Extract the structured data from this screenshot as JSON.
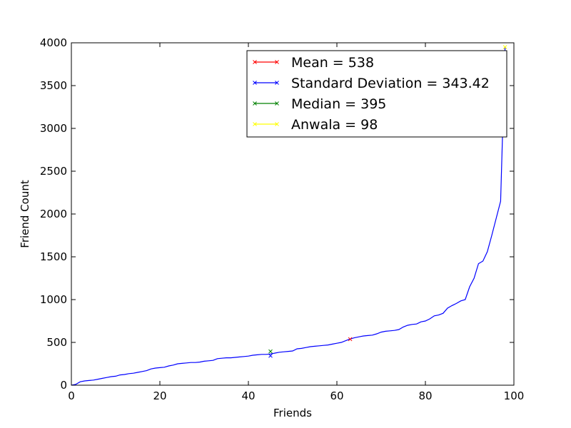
{
  "chart_data": {
    "type": "line",
    "xlabel": "Friends",
    "ylabel": "Friend Count",
    "xlim": [
      0,
      100
    ],
    "ylim": [
      0,
      4000
    ],
    "x_ticks": [
      "0",
      "20",
      "40",
      "60",
      "80",
      "100"
    ],
    "y_ticks": [
      "0",
      "500",
      "1000",
      "1500",
      "2000",
      "2500",
      "3000",
      "3500",
      "4000"
    ],
    "grid": false,
    "legend_position": "top-right",
    "series": [
      {
        "name": "Friend Count",
        "color": "#0000ff",
        "x": [
          0,
          1,
          2,
          3,
          4,
          5,
          6,
          7,
          8,
          9,
          10,
          11,
          12,
          13,
          14,
          15,
          16,
          17,
          18,
          19,
          20,
          21,
          22,
          23,
          24,
          25,
          26,
          27,
          28,
          29,
          30,
          31,
          32,
          33,
          34,
          35,
          36,
          37,
          38,
          39,
          40,
          41,
          42,
          43,
          44,
          45,
          46,
          47,
          48,
          49,
          50,
          51,
          52,
          53,
          54,
          55,
          56,
          57,
          58,
          59,
          60,
          61,
          62,
          63,
          64,
          65,
          66,
          67,
          68,
          69,
          70,
          71,
          72,
          73,
          74,
          75,
          76,
          77,
          78,
          79,
          80,
          81,
          82,
          83,
          84,
          85,
          86,
          87,
          88,
          89,
          90,
          91,
          92,
          93,
          94,
          95,
          96,
          97,
          98
        ],
        "y": [
          0,
          10,
          40,
          50,
          55,
          60,
          70,
          80,
          90,
          100,
          105,
          120,
          125,
          135,
          140,
          150,
          160,
          170,
          190,
          200,
          205,
          210,
          225,
          235,
          250,
          255,
          260,
          265,
          265,
          270,
          280,
          285,
          290,
          310,
          315,
          320,
          320,
          325,
          330,
          335,
          340,
          350,
          355,
          360,
          360,
          365,
          375,
          385,
          390,
          395,
          400,
          425,
          430,
          440,
          450,
          455,
          460,
          465,
          470,
          480,
          490,
          500,
          520,
          540,
          555,
          565,
          575,
          580,
          585,
          600,
          620,
          630,
          635,
          640,
          650,
          680,
          700,
          710,
          715,
          740,
          750,
          775,
          810,
          820,
          840,
          900,
          930,
          955,
          985,
          1000,
          1150,
          1250,
          1420,
          1450,
          1560,
          1750,
          1950,
          2150,
          3950
        ]
      }
    ],
    "markers": [
      {
        "name": "Mean",
        "x": 63,
        "y": 538,
        "color": "#ff0000"
      },
      {
        "name": "Standard Deviation",
        "x": 45,
        "y": 343.42,
        "color": "#0000ff"
      },
      {
        "name": "Median",
        "x": 45,
        "y": 395,
        "color": "#008000"
      },
      {
        "name": "Anwala",
        "x": 98,
        "y": 3950,
        "color": "#ffff00"
      }
    ],
    "legend": [
      {
        "label": "Mean = 538",
        "color": "#ff0000"
      },
      {
        "label": "Standard Deviation = 343.42",
        "color": "#0000ff"
      },
      {
        "label": "Median = 395",
        "color": "#008000"
      },
      {
        "label": "Anwala = 98",
        "color": "#ffff00"
      }
    ]
  }
}
